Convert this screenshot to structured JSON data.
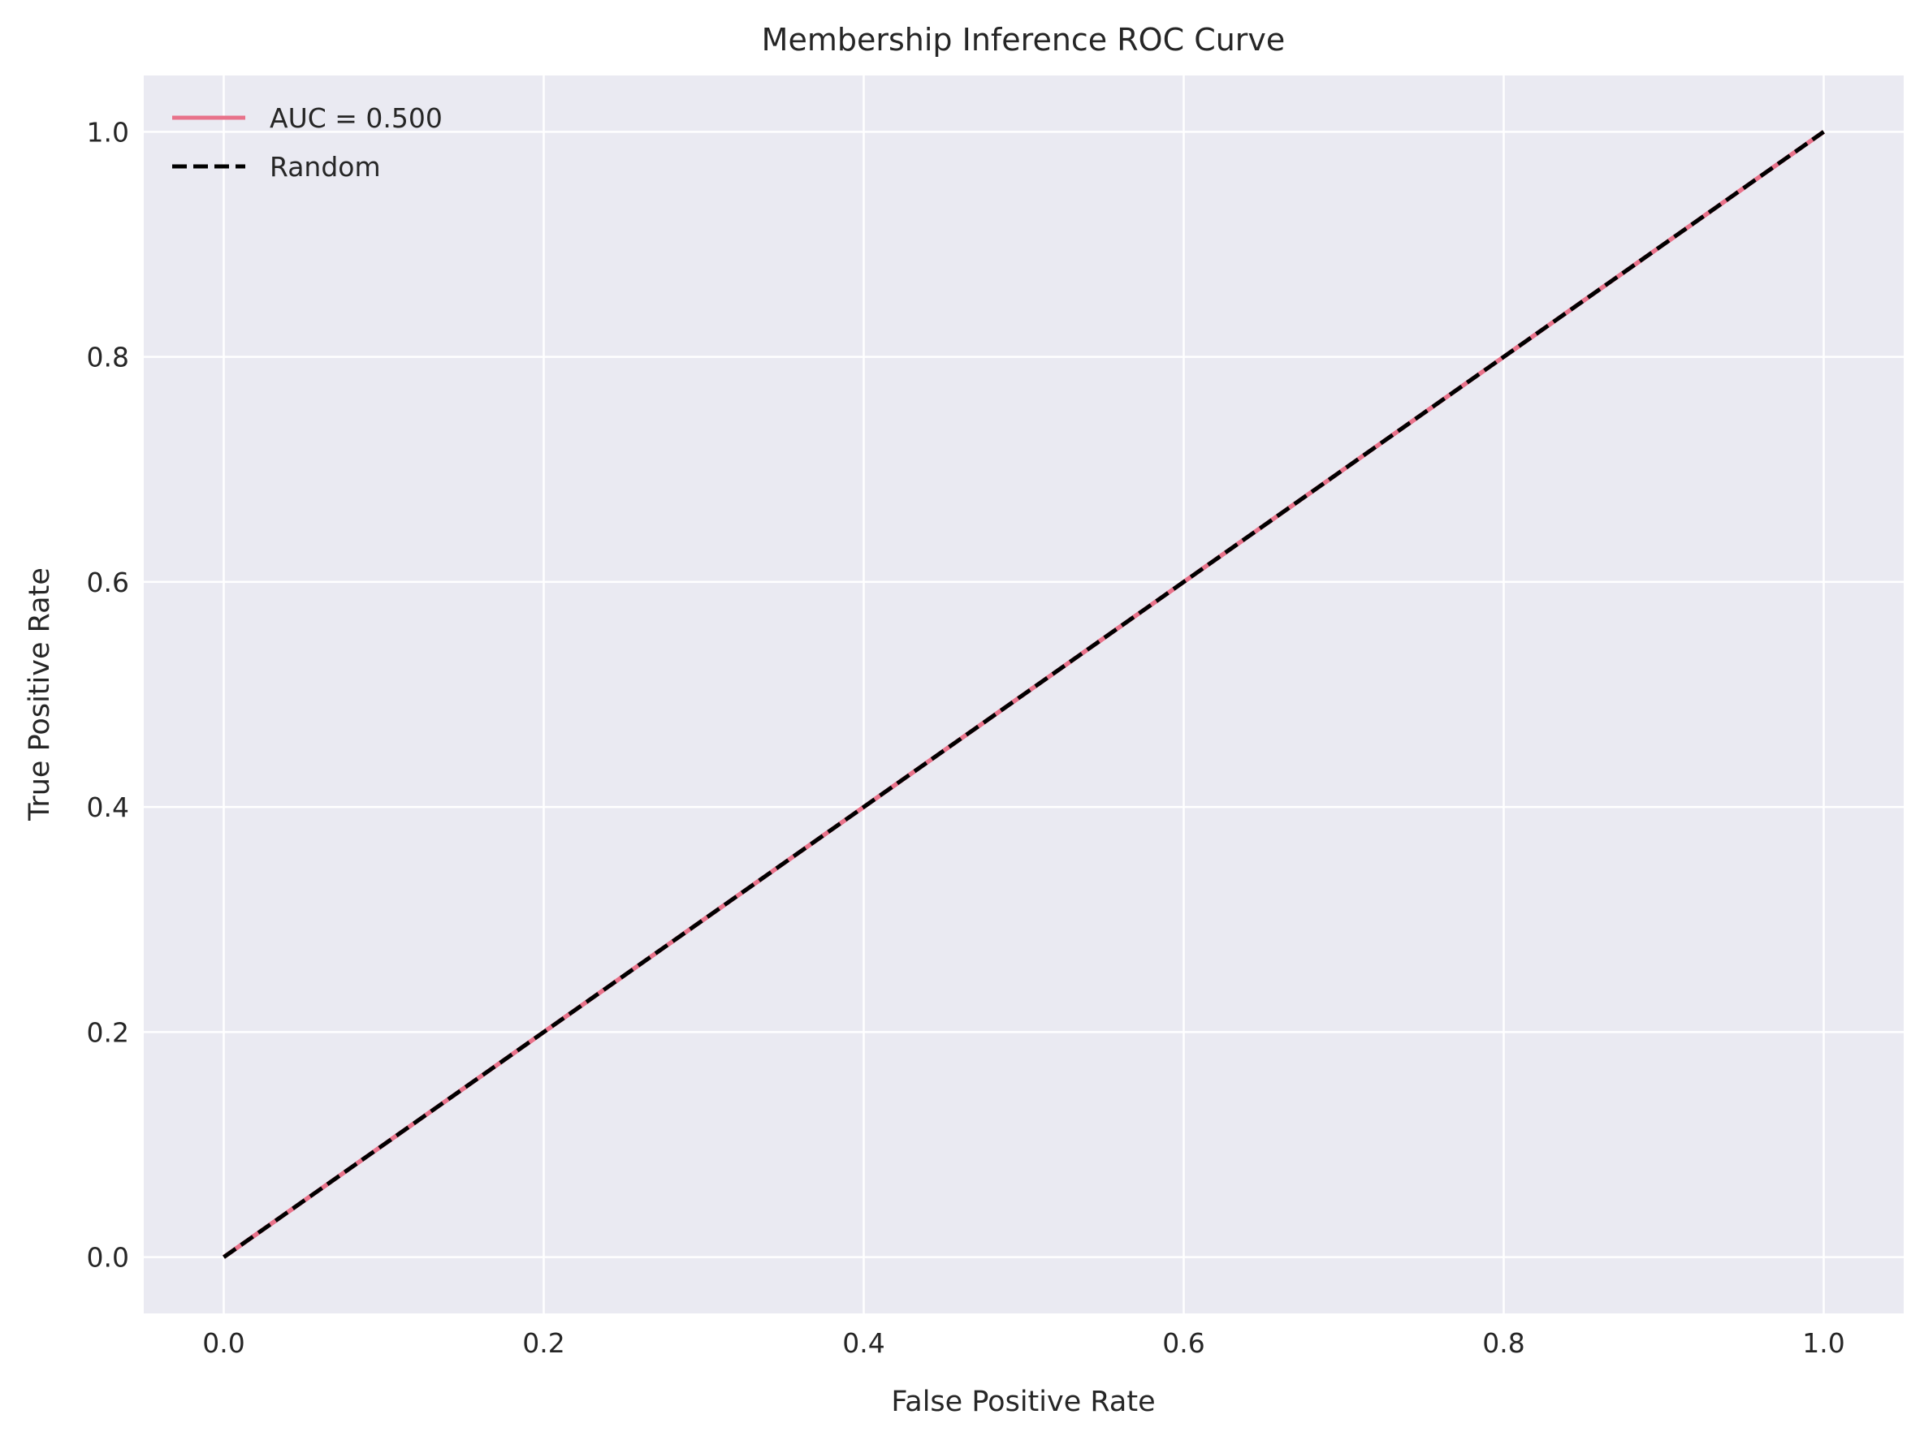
{
  "chart_data": {
    "type": "line",
    "title": "Membership Inference ROC Curve",
    "xlabel": "False Positive Rate",
    "ylabel": "True Positive Rate",
    "xlim": [
      -0.05,
      1.05
    ],
    "ylim": [
      -0.05,
      1.05
    ],
    "xticks": [
      0.0,
      0.2,
      0.4,
      0.6,
      0.8,
      1.0
    ],
    "xtick_labels": [
      "0.0",
      "0.2",
      "0.4",
      "0.6",
      "0.8",
      "1.0"
    ],
    "yticks": [
      0.0,
      0.2,
      0.4,
      0.6,
      0.8,
      1.0
    ],
    "ytick_labels": [
      "0.0",
      "0.2",
      "0.4",
      "0.6",
      "0.8",
      "1.0"
    ],
    "grid": true,
    "legend_position": "top-left",
    "background_color": "#eaeaf2",
    "grid_color": "#ffffff",
    "series": [
      {
        "name": "AUC = 0.500",
        "color": "#e8728a",
        "style": "solid",
        "x": [
          0.0,
          1.0
        ],
        "y": [
          0.0,
          1.0
        ]
      },
      {
        "name": "Random",
        "color": "#000000",
        "style": "dashed",
        "x": [
          0.0,
          1.0
        ],
        "y": [
          0.0,
          1.0
        ]
      }
    ]
  }
}
